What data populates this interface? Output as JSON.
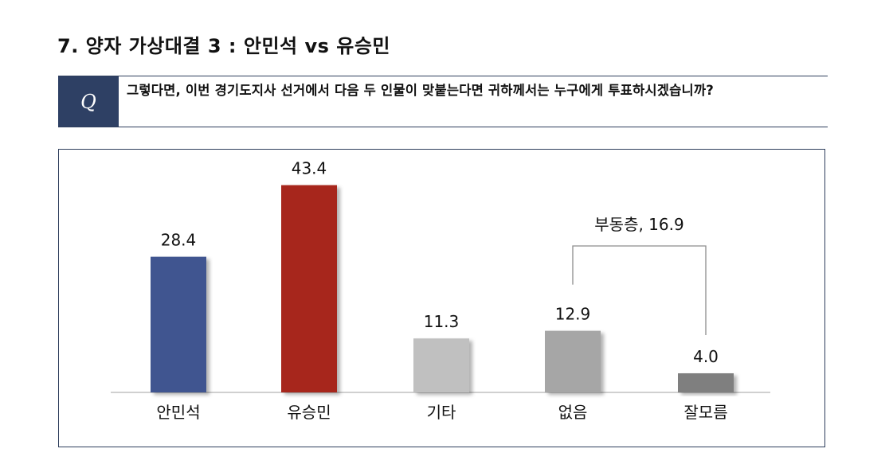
{
  "page": {
    "title": "7. 양자 가상대결 3 : 안민석 vs 유승민",
    "question_marker": "Q",
    "question_text": "그렇다면, 이번 경기도지사 선거에서 다음 두 인물이 맞붙는다면 귀하께서는 누구에게 투표하시겠습니까?"
  },
  "chart_data": {
    "type": "bar",
    "title": "",
    "xlabel": "",
    "ylabel": "",
    "categories": [
      "안민석",
      "유승민",
      "기타",
      "없음",
      "잘모름"
    ],
    "values": [
      28.4,
      43.4,
      11.3,
      12.9,
      4.0
    ],
    "value_labels": [
      "28.4",
      "43.4",
      "11.3",
      "12.9",
      "4.0"
    ],
    "colors": [
      "#3f5490",
      "#a7251b",
      "#c0c0c0",
      "#a6a6a6",
      "#7f7f7f"
    ],
    "ylim": [
      0,
      50
    ],
    "grid": false,
    "legend": "none",
    "annotations": [
      {
        "text": "부동층, 16.9",
        "spans": [
          "없음",
          "잘모름"
        ],
        "value": 16.9
      }
    ]
  }
}
